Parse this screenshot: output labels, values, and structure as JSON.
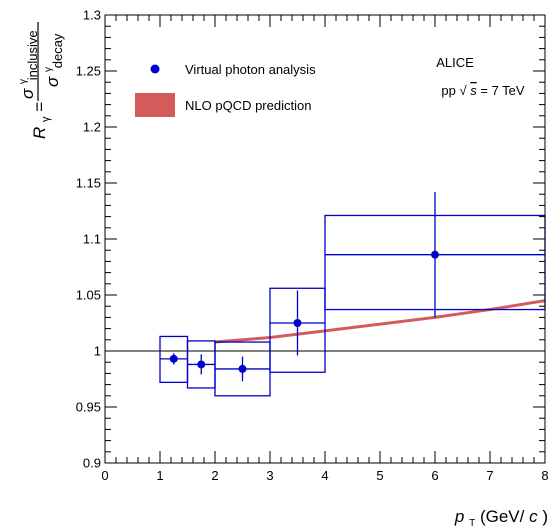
{
  "chart_data": {
    "type": "scatter",
    "xlabel": "p_T (GeV/c)",
    "ylabel": "R_γ = σ^γ_inclusive / σ^γ_decay",
    "xlim": [
      0,
      8
    ],
    "ylim": [
      0.9,
      1.3
    ],
    "x_ticks": [
      "0",
      "1",
      "2",
      "3",
      "4",
      "5",
      "6",
      "7",
      "8"
    ],
    "y_ticks": [
      "0.9",
      "0.95",
      "1",
      "1.05",
      "1.1",
      "1.15",
      "1.2",
      "1.25",
      "1.3"
    ],
    "reference_line": 1.0,
    "annotations": [
      "ALICE",
      "pp √s = 7 TeV"
    ],
    "series": [
      {
        "name": "Virtual photon analysis",
        "marker": "circle",
        "color": "#0000cc",
        "points": [
          {
            "x": 1.25,
            "y": 0.993,
            "x_low": 1.0,
            "x_high": 1.5,
            "stat_err": 0.005,
            "sys_low": 0.972,
            "sys_high": 1.013
          },
          {
            "x": 1.75,
            "y": 0.988,
            "x_low": 1.5,
            "x_high": 2.0,
            "stat_err": 0.009,
            "sys_low": 0.967,
            "sys_high": 1.009
          },
          {
            "x": 2.5,
            "y": 0.984,
            "x_low": 2.0,
            "x_high": 3.0,
            "stat_err": 0.011,
            "sys_low": 0.96,
            "sys_high": 1.008
          },
          {
            "x": 3.5,
            "y": 1.025,
            "x_low": 3.0,
            "x_high": 4.0,
            "stat_err": 0.029,
            "sys_low": 0.981,
            "sys_high": 1.056
          },
          {
            "x": 6.0,
            "y": 1.086,
            "x_low": 4.0,
            "x_high": 8.0,
            "stat_err": 0.056,
            "sys_low": 1.037,
            "sys_high": 1.121
          }
        ]
      },
      {
        "name": "NLO pQCD prediction",
        "type": "band",
        "color": "#d45b5b",
        "x": [
          2.0,
          3.0,
          4.0,
          5.0,
          6.0,
          7.0,
          8.0
        ],
        "y": [
          1.008,
          1.012,
          1.018,
          1.024,
          1.03,
          1.037,
          1.045
        ]
      }
    ]
  },
  "axis_text": {
    "x_title_p": "p",
    "x_title_sub": "T",
    "x_title_units": " (GeV/",
    "x_title_c": "c",
    "x_title_close": ")",
    "y_title_R": "R",
    "y_title_sub": "γ",
    "y_title_eq": " = ",
    "y_num_sigma": "σ",
    "y_num_sup": "γ",
    "y_num_sub": "inclusive",
    "y_den_sigma": "σ",
    "y_den_sup": "γ",
    "y_den_sub": "decay"
  },
  "legend": {
    "position": "top-left",
    "entry_1": "Virtual photon analysis",
    "entry_2": "NLO pQCD prediction"
  },
  "annotation_text": {
    "line1": "ALICE",
    "line2_prefix": "pp ",
    "line2_sqrt": "√",
    "line2_s": "s",
    "line2_suffix": " = 7 TeV"
  }
}
